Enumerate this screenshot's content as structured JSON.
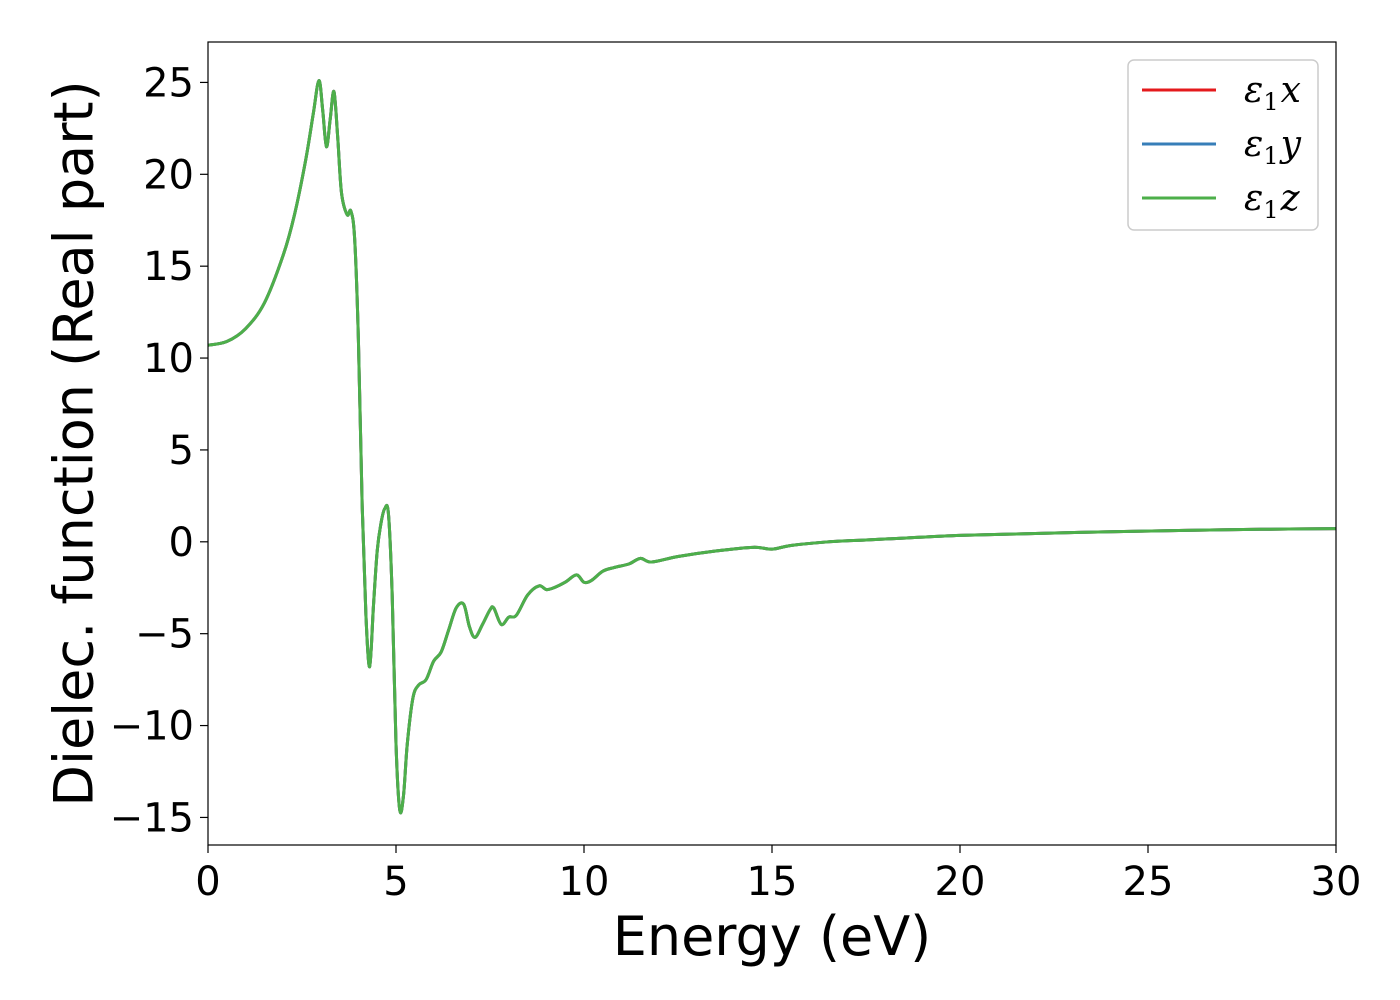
{
  "chart_data": {
    "type": "line",
    "xlabel": "Energy (eV)",
    "ylabel": "Dielec. function (Real part)",
    "xlim": [
      0,
      30
    ],
    "ylim": [
      -16.5,
      27.2
    ],
    "xticks": [
      0,
      5,
      10,
      15,
      20,
      25,
      30
    ],
    "xtick_labels": [
      "0",
      "5",
      "10",
      "15",
      "20",
      "25",
      "30"
    ],
    "yticks": [
      -15,
      -10,
      -5,
      0,
      5,
      10,
      15,
      20,
      25
    ],
    "ytick_labels": [
      "−15",
      "−10",
      "−5",
      "0",
      "5",
      "10",
      "15",
      "20",
      "25"
    ],
    "grid": false,
    "legend_position": "top-right",
    "x": [
      0,
      0.5,
      1.0,
      1.5,
      2.0,
      2.3,
      2.6,
      2.8,
      2.95,
      3.05,
      3.15,
      3.25,
      3.35,
      3.45,
      3.55,
      3.7,
      3.8,
      3.9,
      4.0,
      4.1,
      4.2,
      4.3,
      4.4,
      4.5,
      4.6,
      4.7,
      4.8,
      4.9,
      5.0,
      5.1,
      5.2,
      5.3,
      5.45,
      5.6,
      5.8,
      6.0,
      6.2,
      6.4,
      6.6,
      6.8,
      6.95,
      7.1,
      7.3,
      7.5,
      7.6,
      7.8,
      8.0,
      8.2,
      8.5,
      8.8,
      9.0,
      9.2,
      9.5,
      9.8,
      10.0,
      10.2,
      10.5,
      10.8,
      11.2,
      11.5,
      11.8,
      12.5,
      13.5,
      14.5,
      15.0,
      15.5,
      16.5,
      17.5,
      18.5,
      20.0,
      22.0,
      24.0,
      26.0,
      28.0,
      30.0
    ],
    "series": [
      {
        "name": "ε₁x",
        "label_main": "ε",
        "label_sub": "1",
        "label_tail": "x",
        "color": "#e41a1c",
        "values": [
          10.7,
          10.9,
          11.6,
          13.0,
          15.6,
          17.8,
          20.8,
          23.3,
          25.1,
          23.5,
          21.5,
          23.0,
          24.5,
          22.0,
          19.0,
          17.8,
          18.0,
          16.5,
          11.0,
          2.0,
          -4.0,
          -6.8,
          -3.5,
          -0.5,
          1.0,
          1.8,
          1.5,
          -3.0,
          -11.0,
          -14.6,
          -13.8,
          -11.0,
          -8.5,
          -7.8,
          -7.5,
          -6.5,
          -6.0,
          -4.8,
          -3.6,
          -3.4,
          -4.6,
          -5.2,
          -4.5,
          -3.7,
          -3.6,
          -4.5,
          -4.1,
          -4.0,
          -2.9,
          -2.4,
          -2.6,
          -2.5,
          -2.2,
          -1.8,
          -2.2,
          -2.1,
          -1.6,
          -1.4,
          -1.2,
          -0.9,
          -1.1,
          -0.8,
          -0.5,
          -0.3,
          -0.4,
          -0.2,
          0.0,
          0.1,
          0.2,
          0.35,
          0.45,
          0.55,
          0.62,
          0.68,
          0.72
        ]
      },
      {
        "name": "ε₁y",
        "label_main": "ε",
        "label_sub": "1",
        "label_tail": "y",
        "color": "#377eb8",
        "values": [
          10.7,
          10.9,
          11.6,
          13.0,
          15.6,
          17.8,
          20.8,
          23.3,
          25.1,
          23.5,
          21.5,
          23.0,
          24.5,
          22.0,
          19.0,
          17.8,
          18.0,
          16.5,
          11.0,
          2.0,
          -4.0,
          -6.8,
          -3.5,
          -0.5,
          1.0,
          1.8,
          1.5,
          -3.0,
          -11.0,
          -14.6,
          -13.8,
          -11.0,
          -8.5,
          -7.8,
          -7.5,
          -6.5,
          -6.0,
          -4.8,
          -3.6,
          -3.4,
          -4.6,
          -5.2,
          -4.5,
          -3.7,
          -3.6,
          -4.5,
          -4.1,
          -4.0,
          -2.9,
          -2.4,
          -2.6,
          -2.5,
          -2.2,
          -1.8,
          -2.2,
          -2.1,
          -1.6,
          -1.4,
          -1.2,
          -0.9,
          -1.1,
          -0.8,
          -0.5,
          -0.3,
          -0.4,
          -0.2,
          0.0,
          0.1,
          0.2,
          0.35,
          0.45,
          0.55,
          0.62,
          0.68,
          0.72
        ]
      },
      {
        "name": "ε₁z",
        "label_main": "ε",
        "label_sub": "1",
        "label_tail": "z",
        "color": "#4daf4a",
        "values": [
          10.7,
          10.9,
          11.6,
          13.0,
          15.6,
          17.8,
          20.8,
          23.3,
          25.1,
          23.5,
          21.5,
          23.0,
          24.5,
          22.0,
          19.0,
          17.8,
          18.0,
          16.5,
          11.0,
          2.0,
          -4.0,
          -6.8,
          -3.5,
          -0.5,
          1.0,
          1.8,
          1.5,
          -3.0,
          -11.0,
          -14.6,
          -13.8,
          -11.0,
          -8.5,
          -7.8,
          -7.5,
          -6.5,
          -6.0,
          -4.8,
          -3.6,
          -3.4,
          -4.6,
          -5.2,
          -4.5,
          -3.7,
          -3.6,
          -4.5,
          -4.1,
          -4.0,
          -2.9,
          -2.4,
          -2.6,
          -2.5,
          -2.2,
          -1.8,
          -2.2,
          -2.1,
          -1.6,
          -1.4,
          -1.2,
          -0.9,
          -1.1,
          -0.8,
          -0.5,
          -0.3,
          -0.4,
          -0.2,
          0.0,
          0.1,
          0.2,
          0.35,
          0.45,
          0.55,
          0.62,
          0.68,
          0.72
        ]
      }
    ]
  }
}
